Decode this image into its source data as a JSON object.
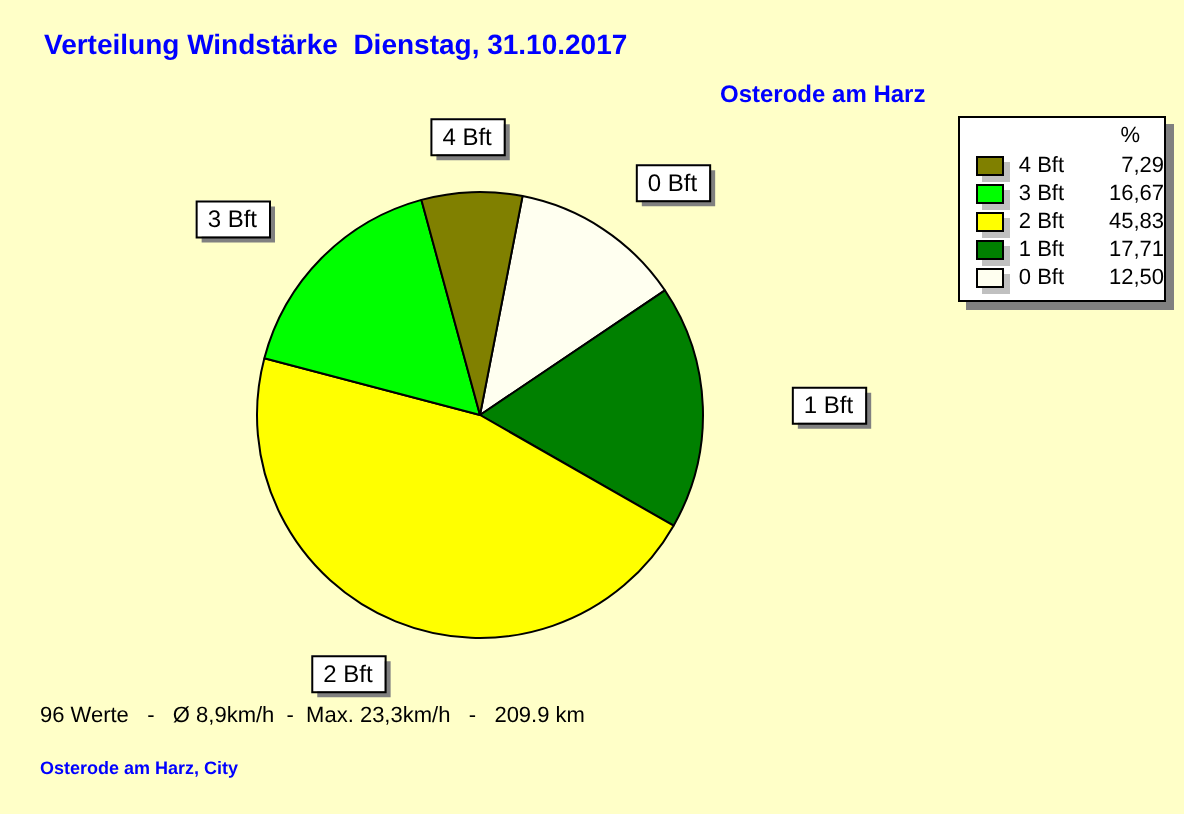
{
  "chart_data": {
    "type": "pie",
    "title": "Verteilung Windstärke  Dienstag, 31.10.2017",
    "subtitle": "Osterode am Harz",
    "legend_title": "%",
    "categories": [
      "0 Bft",
      "1 Bft",
      "2 Bft",
      "3 Bft",
      "4 Bft"
    ],
    "values": [
      12.5,
      17.71,
      45.83,
      16.67,
      7.29
    ],
    "value_labels": [
      "12,50",
      "17,71",
      "45,83",
      "16,67",
      "7,29"
    ],
    "colors": [
      "#fffff0",
      "#008000",
      "#ffff00",
      "#00ff00",
      "#808000"
    ],
    "legend": "top right",
    "annotations": [
      "96 Werte   -   Ø 8,9km/h  -  Max. 23,3km/h   -   209.9 km",
      "Osterode am Harz, City"
    ]
  }
}
